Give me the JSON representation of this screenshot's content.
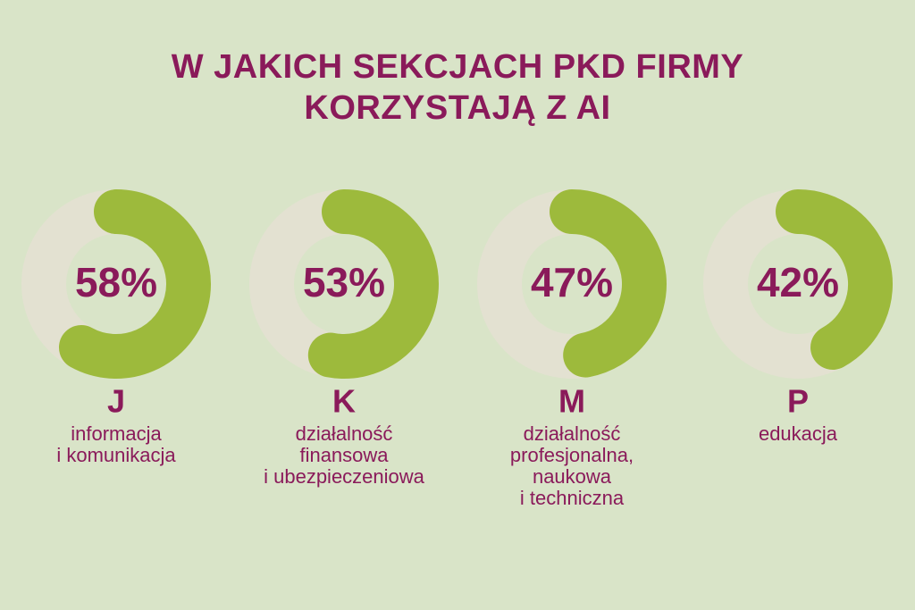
{
  "chart_data": {
    "type": "donut",
    "title": "W JAKICH SEKCJACH PKD FIRMY KORZYSTAJĄ Z AI",
    "categories": [
      "J",
      "K",
      "M",
      "P"
    ],
    "descriptions": [
      [
        "informacja",
        "i komunikacja"
      ],
      [
        "działalność",
        "finansowa",
        "i ubezpieczeniowa"
      ],
      [
        "działalność",
        "profesjonalna,",
        "naukowa",
        "i techniczna"
      ],
      [
        "edukacja"
      ]
    ],
    "values": [
      58,
      53,
      47,
      42
    ],
    "value_labels": [
      "58%",
      "53%",
      "47%",
      "42%"
    ],
    "color": "#9dba3c",
    "track_color": "#e3e1d1"
  }
}
